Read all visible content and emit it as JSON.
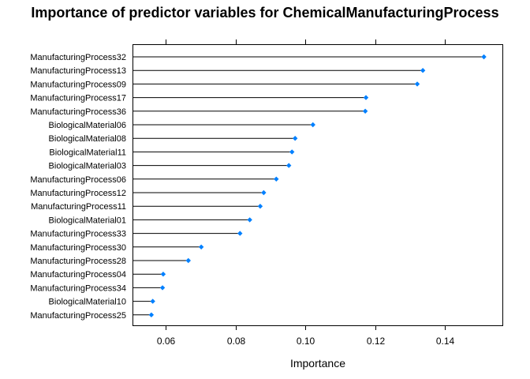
{
  "chart_data": {
    "type": "dot",
    "title": "Importance of predictor variables for ChemicalManufacturingProcess",
    "xlabel": "Importance",
    "ylabel": "",
    "xlim": [
      0.0505,
      0.1565
    ],
    "xticks": [
      0.06,
      0.08,
      0.1,
      0.12,
      0.14
    ],
    "xtick_labels": [
      "0.06",
      "0.08",
      "0.10",
      "0.12",
      "0.14"
    ],
    "baseline": 0.0505,
    "point_color": "#0080ff",
    "line_color": "#000000",
    "categories": [
      "ManufacturingProcess32",
      "ManufacturingProcess13",
      "ManufacturingProcess09",
      "ManufacturingProcess17",
      "ManufacturingProcess36",
      "BiologicalMaterial06",
      "BiologicalMaterial08",
      "BiologicalMaterial11",
      "BiologicalMaterial03",
      "ManufacturingProcess06",
      "ManufacturingProcess12",
      "ManufacturingProcess11",
      "BiologicalMaterial01",
      "ManufacturingProcess33",
      "ManufacturingProcess30",
      "ManufacturingProcess28",
      "ManufacturingProcess04",
      "ManufacturingProcess34",
      "BiologicalMaterial10",
      "ManufacturingProcess25"
    ],
    "values": [
      0.1512,
      0.1337,
      0.1321,
      0.1174,
      0.1172,
      0.1022,
      0.0971,
      0.0962,
      0.0953,
      0.0917,
      0.0881,
      0.0871,
      0.0841,
      0.0813,
      0.0702,
      0.0665,
      0.0593,
      0.0591,
      0.0563,
      0.0559
    ]
  }
}
